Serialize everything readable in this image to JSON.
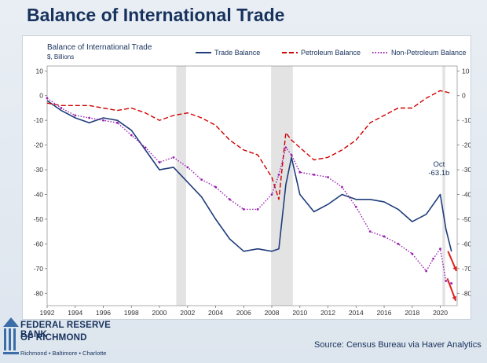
{
  "page": {
    "title": "Balance of International Trade"
  },
  "logo": {
    "line1": "FEDERAL RESERVE BANK",
    "line2": "OF RICHMOND",
    "line3": "Richmond • Baltimore • Charlotte"
  },
  "source": "Source: Census Bureau via Haver Analytics",
  "colors": {
    "trade": "#1f3d7a",
    "petroleum": "#d00000",
    "nonpetroleum": "#9a1fb0",
    "recession": "#e3e3e3"
  },
  "chart_data": {
    "type": "line",
    "title": "Balance of International Trade",
    "units": "$, Billions",
    "x_ticks": [
      1992,
      1994,
      1996,
      1998,
      2000,
      2002,
      2004,
      2006,
      2008,
      2010,
      2012,
      2014,
      2016,
      2018,
      2020
    ],
    "xlim": [
      1992,
      2021.2
    ],
    "ylim": [
      -85,
      12
    ],
    "y_ticks": [
      10,
      0,
      -10,
      -20,
      -30,
      -40,
      -50,
      -60,
      -70,
      -80
    ],
    "grid": false,
    "legend_position": "top",
    "recessions": [
      [
        2001.2,
        2001.9
      ],
      [
        2007.95,
        2009.5
      ],
      [
        2020.15,
        2020.35
      ]
    ],
    "annotation": {
      "line1": "Oct",
      "line2": "-63.1b",
      "x": 2020.8,
      "y": -63.1
    },
    "series": [
      {
        "name": "Trade Balance",
        "style": "solid",
        "points": [
          [
            1992,
            -2
          ],
          [
            1993,
            -6
          ],
          [
            1994,
            -9
          ],
          [
            1995,
            -11
          ],
          [
            1996,
            -9
          ],
          [
            1997,
            -10
          ],
          [
            1998,
            -14
          ],
          [
            1999,
            -22
          ],
          [
            2000,
            -30
          ],
          [
            2001,
            -29
          ],
          [
            2002,
            -35
          ],
          [
            2003,
            -41
          ],
          [
            2004,
            -50
          ],
          [
            2005,
            -58
          ],
          [
            2006,
            -63
          ],
          [
            2007,
            -62
          ],
          [
            2008,
            -63
          ],
          [
            2008.5,
            -62
          ],
          [
            2009,
            -36
          ],
          [
            2009.4,
            -25
          ],
          [
            2010,
            -40
          ],
          [
            2011,
            -47
          ],
          [
            2012,
            -44
          ],
          [
            2013,
            -40
          ],
          [
            2014,
            -42
          ],
          [
            2015,
            -42
          ],
          [
            2016,
            -43
          ],
          [
            2017,
            -46
          ],
          [
            2018,
            -51
          ],
          [
            2019,
            -48
          ],
          [
            2020,
            -40
          ],
          [
            2020.4,
            -54
          ],
          [
            2020.8,
            -63.1
          ]
        ]
      },
      {
        "name": "Petroleum Balance",
        "style": "dashed",
        "points": [
          [
            1992,
            -3
          ],
          [
            1993,
            -4
          ],
          [
            1994,
            -4
          ],
          [
            1995,
            -4
          ],
          [
            1996,
            -5
          ],
          [
            1997,
            -6
          ],
          [
            1998,
            -5
          ],
          [
            1999,
            -7
          ],
          [
            2000,
            -10
          ],
          [
            2001,
            -8
          ],
          [
            2002,
            -7
          ],
          [
            2003,
            -9
          ],
          [
            2004,
            -12
          ],
          [
            2005,
            -18
          ],
          [
            2006,
            -22
          ],
          [
            2007,
            -24
          ],
          [
            2008,
            -33
          ],
          [
            2008.5,
            -42
          ],
          [
            2009,
            -15
          ],
          [
            2009.4,
            -18
          ],
          [
            2010,
            -21
          ],
          [
            2011,
            -26
          ],
          [
            2012,
            -25
          ],
          [
            2013,
            -22
          ],
          [
            2014,
            -18
          ],
          [
            2015,
            -11
          ],
          [
            2016,
            -8
          ],
          [
            2017,
            -5
          ],
          [
            2018,
            -5
          ],
          [
            2019,
            -1
          ],
          [
            2020,
            2
          ],
          [
            2020.8,
            1
          ]
        ]
      },
      {
        "name": "Non-Petroleum Balance",
        "style": "dotted",
        "points": [
          [
            1992,
            -1
          ],
          [
            1993,
            -5
          ],
          [
            1994,
            -8
          ],
          [
            1995,
            -9
          ],
          [
            1996,
            -10
          ],
          [
            1997,
            -11
          ],
          [
            1998,
            -16
          ],
          [
            1999,
            -21
          ],
          [
            2000,
            -27
          ],
          [
            2001,
            -25
          ],
          [
            2002,
            -29
          ],
          [
            2003,
            -34
          ],
          [
            2004,
            -37
          ],
          [
            2005,
            -42
          ],
          [
            2006,
            -46
          ],
          [
            2007,
            -46
          ],
          [
            2008,
            -40
          ],
          [
            2008.5,
            -32
          ],
          [
            2009,
            -21
          ],
          [
            2009.4,
            -24
          ],
          [
            2010,
            -31
          ],
          [
            2011,
            -32
          ],
          [
            2012,
            -33
          ],
          [
            2013,
            -37
          ],
          [
            2014,
            -45
          ],
          [
            2015,
            -55
          ],
          [
            2016,
            -57
          ],
          [
            2017,
            -60
          ],
          [
            2018,
            -64
          ],
          [
            2019,
            -71
          ],
          [
            2019.5,
            -66
          ],
          [
            2020,
            -62
          ],
          [
            2020.4,
            -75
          ],
          [
            2020.8,
            -76
          ]
        ]
      }
    ]
  }
}
